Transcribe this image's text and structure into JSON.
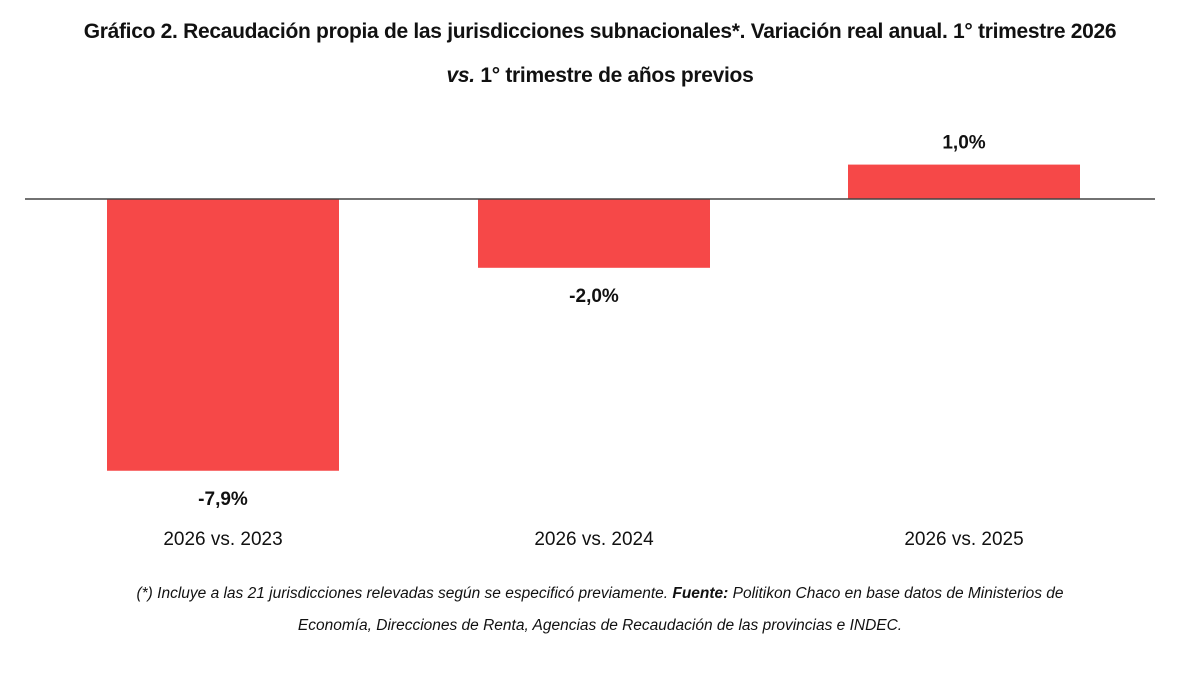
{
  "title": {
    "line1": "Gráfico 2. Recaudación propia de las jurisdicciones subnacionales*. Variación real anual. 1° trimestre 2026",
    "line2_italic": "vs.",
    "line2_rest": " 1° trimestre de años previos"
  },
  "chart_data": {
    "type": "bar",
    "categories": [
      "2026 vs. 2023",
      "2026 vs. 2024",
      "2026 vs. 2025"
    ],
    "values": [
      -7.9,
      -2.0,
      1.0
    ],
    "data_labels": [
      "-7,9%",
      "-2,0%",
      "1,0%"
    ],
    "ylim": [
      -7.9,
      1.0
    ],
    "grid": false,
    "bar_color": "#f64848"
  },
  "footnote": {
    "part1": "(*) Incluye a las 21 jurisdicciones relevadas según se especificó previamente. ",
    "source_label": "Fuente:",
    "part2": " Politikon Chaco en base datos de Ministerios de",
    "line2": "Economía, Direcciones de Renta, Agencias de Recaudación de las provincias e INDEC."
  }
}
